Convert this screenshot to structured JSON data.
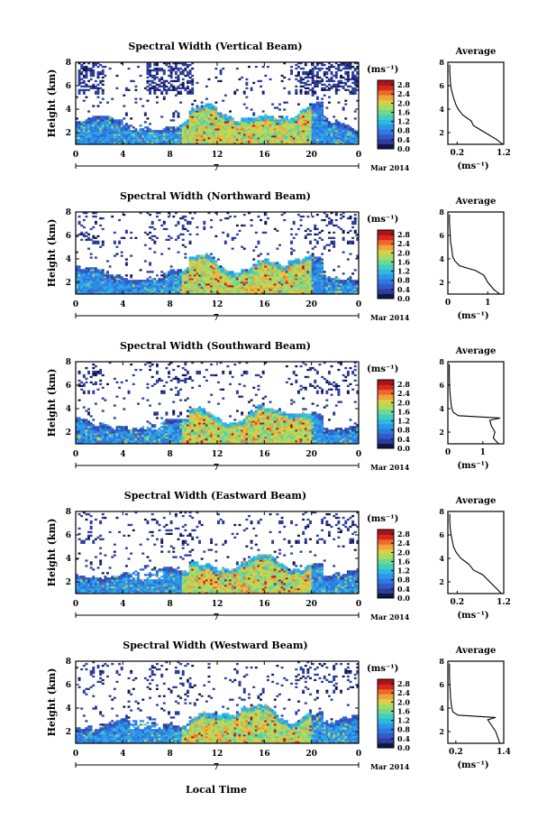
{
  "figure": {
    "date_label": "Mar 2014",
    "day_label": "7",
    "xlabel": "Local Time",
    "unit_label": "(ms⁻¹)",
    "average_title": "Average"
  },
  "colors": {
    "colormap": [
      "#10164a",
      "#2d3d98",
      "#3358c8",
      "#2f78e0",
      "#2a98ea",
      "#30b8e0",
      "#3fd0c0",
      "#70d890",
      "#a6dc62",
      "#d8d048",
      "#f2a23a",
      "#ee6a2c",
      "#d8281e",
      "#a8141a"
    ]
  },
  "chart_data": [
    {
      "type": "heatmap",
      "title": "Spectral Width (Vertical Beam)",
      "ylabel": "Height (km)",
      "xlim": [
        0,
        24
      ],
      "ylim": [
        1,
        8
      ],
      "xticks": [
        "0",
        "4",
        "8",
        "12",
        "16",
        "20",
        "0"
      ],
      "yticks": [
        "2",
        "4",
        "6",
        "8"
      ],
      "colorbar": {
        "ticks": [
          "0.0",
          "0.4",
          "0.8",
          "1.2",
          "1.6",
          "2.0",
          "2.4",
          "2.8"
        ],
        "range": [
          0,
          3.0
        ]
      },
      "profile": {
        "xlim": [
          0.0,
          1.2
        ],
        "ylim": [
          1,
          8
        ],
        "xticks": [
          "0.2",
          "1.2"
        ],
        "yticks": [
          "2",
          "4",
          "6",
          "8"
        ],
        "heights": [
          1.0,
          1.4,
          2.0,
          2.6,
          3.0,
          3.5,
          4.0,
          4.4,
          5.0,
          5.6,
          6.0,
          6.6,
          7.2,
          7.8
        ],
        "values": [
          1.18,
          1.05,
          0.8,
          0.55,
          0.5,
          0.32,
          0.22,
          0.17,
          0.12,
          0.08,
          0.06,
          0.05,
          0.04,
          0.04
        ]
      }
    },
    {
      "type": "heatmap",
      "title": "Spectral Width (Northward Beam)",
      "ylabel": "Height (km)",
      "xlim": [
        0,
        24
      ],
      "ylim": [
        1,
        8
      ],
      "xticks": [
        "0",
        "4",
        "8",
        "12",
        "16",
        "20",
        "0"
      ],
      "yticks": [
        "2",
        "4",
        "6",
        "8"
      ],
      "colorbar": {
        "ticks": [
          "0.0",
          "0.4",
          "0.8",
          "1.2",
          "1.6",
          "2.0",
          "2.4",
          "2.8"
        ],
        "range": [
          0,
          3.0
        ]
      },
      "profile": {
        "xlim": [
          0,
          1.4
        ],
        "ylim": [
          1,
          8
        ],
        "xticks": [
          "0",
          "1"
        ],
        "yticks": [
          "2",
          "4",
          "6",
          "8"
        ],
        "heights": [
          1.0,
          1.4,
          2.0,
          2.6,
          3.0,
          3.4,
          3.8,
          4.2,
          4.8,
          5.4,
          6.0,
          6.6,
          7.2,
          7.8
        ],
        "values": [
          1.3,
          1.15,
          1.0,
          0.9,
          0.7,
          0.3,
          0.18,
          0.12,
          0.1,
          0.07,
          0.06,
          0.05,
          0.04,
          0.04
        ]
      }
    },
    {
      "type": "heatmap",
      "title": "Spectral Width (Southward Beam)",
      "ylabel": "Height (km)",
      "xlim": [
        0,
        24
      ],
      "ylim": [
        1,
        8
      ],
      "xticks": [
        "0",
        "4",
        "8",
        "12",
        "16",
        "20",
        "0"
      ],
      "yticks": [
        "2",
        "4",
        "6",
        "8"
      ],
      "colorbar": {
        "ticks": [
          "0.0",
          "0.4",
          "0.8",
          "1.2",
          "1.6",
          "2.0",
          "2.4",
          "2.8"
        ],
        "range": [
          0,
          3.0
        ]
      },
      "profile": {
        "xlim": [
          0,
          1.6
        ],
        "ylim": [
          1,
          8
        ],
        "xticks": [
          "0",
          "1"
        ],
        "yticks": [
          "2",
          "4",
          "6",
          "8"
        ],
        "heights": [
          1.0,
          1.5,
          2.0,
          2.5,
          3.0,
          3.2,
          3.4,
          3.7,
          4.2,
          4.8,
          5.4,
          6.0,
          6.8,
          7.8
        ],
        "values": [
          1.45,
          1.3,
          1.35,
          1.25,
          1.2,
          1.5,
          0.3,
          0.15,
          0.1,
          0.08,
          0.06,
          0.05,
          0.04,
          0.04
        ]
      }
    },
    {
      "type": "heatmap",
      "title": "Spectral Width (Eastward Beam)",
      "ylabel": "Height (km)",
      "xlim": [
        0,
        24
      ],
      "ylim": [
        1,
        8
      ],
      "xticks": [
        "0",
        "4",
        "8",
        "12",
        "16",
        "20",
        "0"
      ],
      "yticks": [
        "2",
        "4",
        "6",
        "8"
      ],
      "colorbar": {
        "ticks": [
          "0.0",
          "0.4",
          "0.8",
          "1.2",
          "1.6",
          "2.0",
          "2.4",
          "2.8"
        ],
        "range": [
          0,
          3.0
        ]
      },
      "profile": {
        "xlim": [
          0.0,
          1.2
        ],
        "ylim": [
          1,
          8
        ],
        "xticks": [
          "0.2",
          "1.2"
        ],
        "yticks": [
          "2",
          "4",
          "6",
          "8"
        ],
        "heights": [
          1.0,
          1.4,
          2.0,
          2.6,
          3.0,
          3.5,
          4.0,
          4.5,
          5.0,
          5.6,
          6.0,
          6.6,
          7.2,
          7.8
        ],
        "values": [
          1.15,
          1.05,
          0.9,
          0.75,
          0.55,
          0.45,
          0.28,
          0.18,
          0.12,
          0.09,
          0.07,
          0.05,
          0.04,
          0.04
        ]
      }
    },
    {
      "type": "heatmap",
      "title": "Spectral Width (Westward Beam)",
      "ylabel": "Height (km)",
      "xlim": [
        0,
        24
      ],
      "ylim": [
        1,
        8
      ],
      "xticks": [
        "0",
        "4",
        "8",
        "12",
        "16",
        "20",
        "0"
      ],
      "yticks": [
        "2",
        "4",
        "6",
        "8"
      ],
      "colorbar": {
        "ticks": [
          "0.0",
          "0.4",
          "0.8",
          "1.2",
          "1.6",
          "2.0",
          "2.4",
          "2.8"
        ],
        "range": [
          0,
          3.0
        ]
      },
      "profile": {
        "xlim": [
          0.0,
          1.4
        ],
        "ylim": [
          1,
          8
        ],
        "xticks": [
          "0.2",
          "1.4"
        ],
        "yticks": [
          "2",
          "4",
          "6",
          "8"
        ],
        "heights": [
          1.0,
          1.5,
          2.0,
          2.5,
          3.0,
          3.2,
          3.4,
          3.7,
          4.2,
          4.8,
          5.4,
          6.0,
          6.8,
          7.8
        ],
        "values": [
          1.3,
          1.25,
          1.2,
          1.1,
          1.0,
          1.2,
          0.25,
          0.12,
          0.09,
          0.07,
          0.06,
          0.05,
          0.04,
          0.04
        ]
      }
    }
  ]
}
